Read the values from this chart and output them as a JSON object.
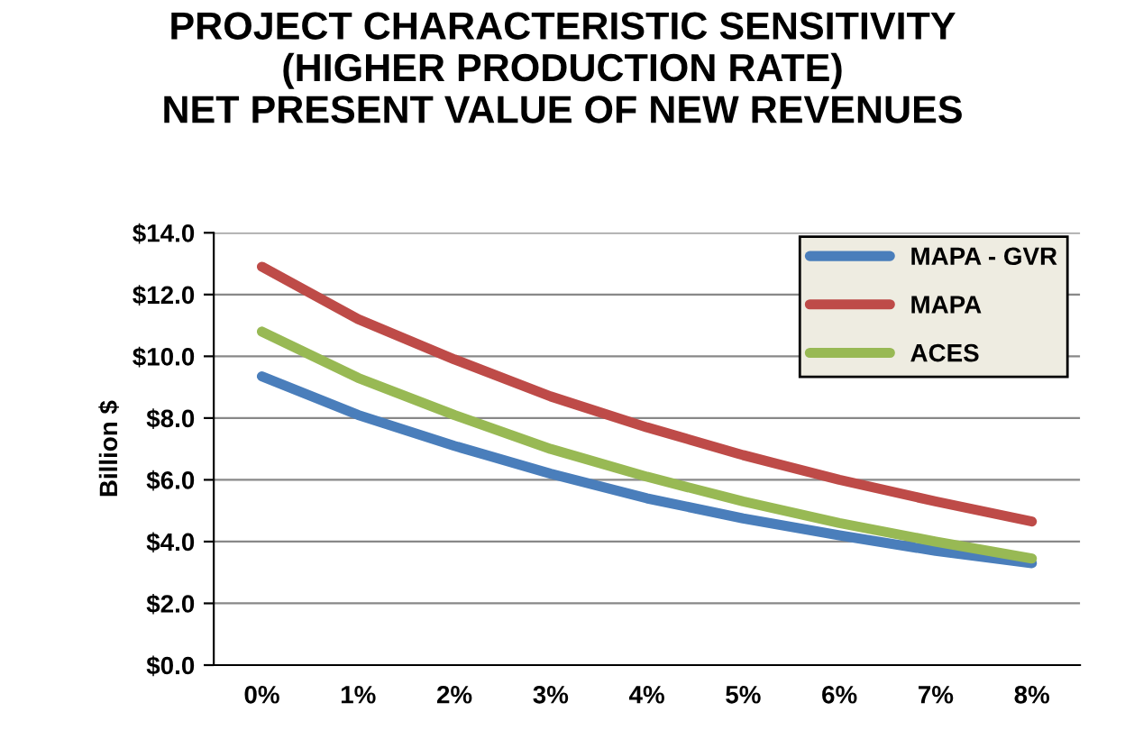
{
  "chart_data": {
    "type": "line",
    "title": "PROJECT CHARACTERISTIC SENSITIVITY\n(HIGHER PRODUCTION RATE)\nNET PRESENT VALUE OF NEW REVENUES",
    "ylabel": "Billion $",
    "categories": [
      "0%",
      "1%",
      "2%",
      "3%",
      "4%",
      "5%",
      "6%",
      "7%",
      "8%"
    ],
    "series": [
      {
        "name": "MAPA - GVR",
        "color": "#4a7ebb",
        "values": [
          9.35,
          8.1,
          7.1,
          6.2,
          5.4,
          4.75,
          4.2,
          3.7,
          3.3
        ]
      },
      {
        "name": "MAPA",
        "color": "#be4b48",
        "values": [
          12.9,
          11.2,
          9.9,
          8.7,
          7.7,
          6.8,
          6.0,
          5.3,
          4.65
        ]
      },
      {
        "name": "ACES",
        "color": "#98b954",
        "values": [
          10.8,
          9.3,
          8.1,
          7.0,
          6.1,
          5.3,
          4.6,
          4.0,
          3.45
        ]
      }
    ],
    "ylim": [
      0,
      14
    ],
    "yticks": [
      {
        "value": 0,
        "label": "$0.0"
      },
      {
        "value": 2,
        "label": "$2.0"
      },
      {
        "value": 4,
        "label": "$4.0"
      },
      {
        "value": 6,
        "label": "$6.0"
      },
      {
        "value": 8,
        "label": "$8.0"
      },
      {
        "value": 10,
        "label": "$10.0"
      },
      {
        "value": 12,
        "label": "$12.0"
      },
      {
        "value": 14,
        "label": "$14.0"
      }
    ],
    "grid": "y",
    "legend": "top right",
    "marker": "none",
    "line_style": "solid"
  }
}
